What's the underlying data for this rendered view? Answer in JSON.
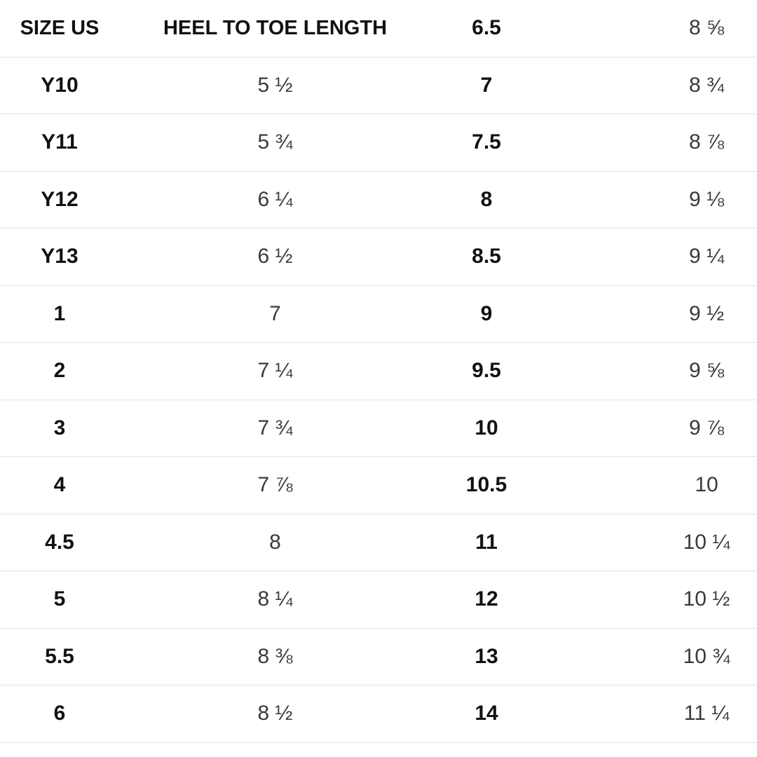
{
  "table": {
    "header_size": "SIZE US",
    "header_length": "HEEL TO TOE LENGTH",
    "left_rows": [
      {
        "size": "Y10",
        "length": "5 ½"
      },
      {
        "size": "Y11",
        "length": "5 ¾"
      },
      {
        "size": "Y12",
        "length": "6 ¼"
      },
      {
        "size": "Y13",
        "length": "6 ½"
      },
      {
        "size": "1",
        "length": "7"
      },
      {
        "size": "2",
        "length": "7 ¼"
      },
      {
        "size": "3",
        "length": "7 ¾"
      },
      {
        "size": "4",
        "length": "7 ⅞"
      },
      {
        "size": "4.5",
        "length": "8"
      },
      {
        "size": "5",
        "length": "8 ¼"
      },
      {
        "size": "5.5",
        "length": "8 ⅜"
      },
      {
        "size": "6",
        "length": "8 ½"
      }
    ],
    "right_rows": [
      {
        "size": "6.5",
        "length": "8 ⅝"
      },
      {
        "size": "7",
        "length": "8 ¾"
      },
      {
        "size": "7.5",
        "length": "8 ⅞"
      },
      {
        "size": "8",
        "length": "9 ⅛"
      },
      {
        "size": "8.5",
        "length": "9 ¼"
      },
      {
        "size": "9",
        "length": "9 ½"
      },
      {
        "size": "9.5",
        "length": "9 ⅝"
      },
      {
        "size": "10",
        "length": "9 ⅞"
      },
      {
        "size": "10.5",
        "length": "10"
      },
      {
        "size": "11",
        "length": "10 ¼"
      },
      {
        "size": "12",
        "length": "10 ½"
      },
      {
        "size": "13",
        "length": "10 ¾"
      },
      {
        "size": "14",
        "length": "11 ¼"
      }
    ]
  }
}
